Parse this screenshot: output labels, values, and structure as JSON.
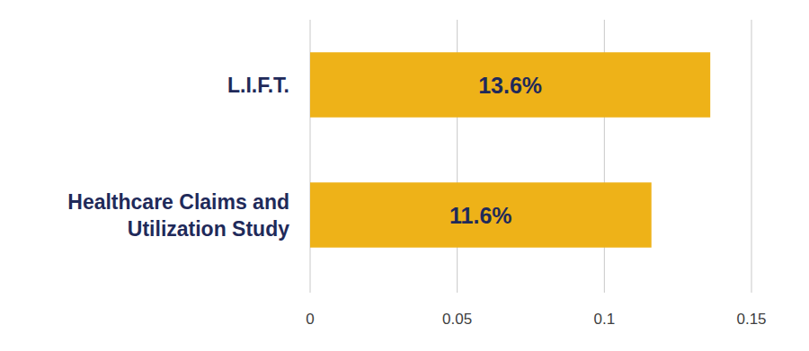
{
  "chart_data": {
    "type": "bar",
    "orientation": "horizontal",
    "categories": [
      "L.I.F.T.",
      "Healthcare Claims and Utilization Study"
    ],
    "values": [
      0.136,
      0.116
    ],
    "value_labels": [
      "13.6%",
      "11.6%"
    ],
    "color": "#eeb218",
    "xlim": [
      0,
      0.15
    ],
    "xticks": [
      0,
      0.05,
      0.1,
      0.15
    ],
    "grid": true,
    "data_labels": true
  }
}
